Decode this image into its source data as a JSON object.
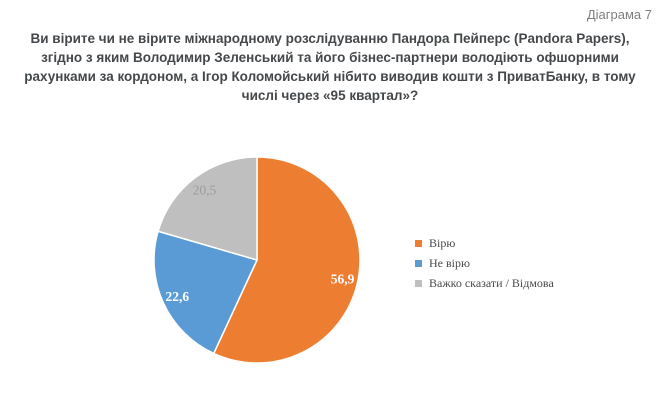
{
  "page": {
    "diagram_label": "Діаграма 7",
    "title": "Ви вірите чи не вірите міжнародному розслідуванню Пандора Пейперс (Pandora Papers), згідно з яким Володимир Зеленський та його бізнес-партнери володіють  офшорними рахунками за кордоном, а Ігор Коломойський нібито виводив кошти з ПриватБанку, в тому числі через «95 квартал»?"
  },
  "colors": {
    "orange": "#ED7D31",
    "blue": "#5B9BD5",
    "gray": "#BFBFBF",
    "title_text": "#45484B",
    "muted_text": "#7F7F7F",
    "legend_text": "#4A4A4A"
  },
  "chart_data": {
    "type": "pie",
    "title": "",
    "values_unit": "percent",
    "start_angle_deg": 0,
    "direction": "clockwise",
    "center": [
      257,
      260
    ],
    "radius": 103,
    "label_radius_ratio": 0.85,
    "legend_position": "right",
    "categories": [
      "Вірю",
      "Не вірю",
      "Важко сказати / Відмова"
    ],
    "values": [
      56.9,
      22.6,
      20.5
    ],
    "slices": [
      {
        "name": "Вірю",
        "value": 56.9,
        "label": "56,9",
        "color": "#ED7D31",
        "label_color": "#FFFFFF",
        "label_bold": true
      },
      {
        "name": "Не вірю",
        "value": 22.6,
        "label": "22,6",
        "color": "#5B9BD5",
        "label_color": "#FFFFFF",
        "label_bold": true
      },
      {
        "name": "Важко сказати / Відмова",
        "value": 20.5,
        "label": "20,5",
        "color": "#BFBFBF",
        "label_color": "#9C9C9C",
        "label_bold": false
      }
    ]
  }
}
